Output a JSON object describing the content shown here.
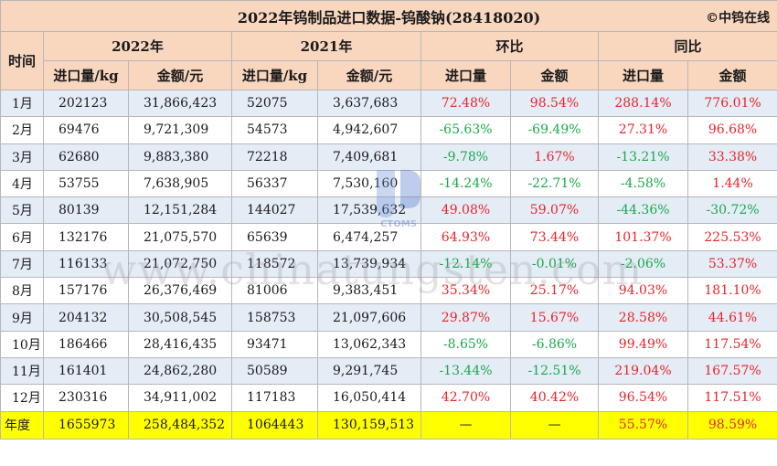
{
  "title": "2022年钨制品进口数据-钨酸钠(28418020)",
  "copyright": "©中钨在线",
  "watermark": "www.chinatungsten.com",
  "logo_text": "CTOMS",
  "headers": {
    "time": "时间",
    "year2022": "2022年",
    "year2021": "2021年",
    "mom": "环比",
    "yoy": "同比",
    "qty": "进口量/kg",
    "amount_yuan": "金额/元",
    "qty_short": "进口量",
    "amount": "金额"
  },
  "rows": [
    {
      "month": "1月",
      "q22": "202123",
      "a22": "31,866,423",
      "q21": "52075",
      "a21": "3,637,683",
      "mq": "72.48%",
      "ma": "98.54%",
      "yq": "288.14%",
      "ya": "776.01%"
    },
    {
      "month": "2月",
      "q22": "69476",
      "a22": "9,721,309",
      "q21": "54573",
      "a21": "4,942,607",
      "mq": "-65.63%",
      "ma": "-69.49%",
      "yq": "27.31%",
      "ya": "96.68%"
    },
    {
      "month": "3月",
      "q22": "62680",
      "a22": "9,883,380",
      "q21": "72218",
      "a21": "7,409,681",
      "mq": "-9.78%",
      "ma": "1.67%",
      "yq": "-13.21%",
      "ya": "33.38%"
    },
    {
      "month": "4月",
      "q22": "53755",
      "a22": "7,638,905",
      "q21": "56337",
      "a21": "7,530,160",
      "mq": "-14.24%",
      "ma": "-22.71%",
      "yq": "-4.58%",
      "ya": "1.44%"
    },
    {
      "month": "5月",
      "q22": "80139",
      "a22": "12,151,284",
      "q21": "144027",
      "a21": "17,539,632",
      "mq": "49.08%",
      "ma": "59.07%",
      "yq": "-44.36%",
      "ya": "-30.72%"
    },
    {
      "month": "6月",
      "q22": "132176",
      "a22": "21,075,570",
      "q21": "65639",
      "a21": "6,474,257",
      "mq": "64.93%",
      "ma": "73.44%",
      "yq": "101.37%",
      "ya": "225.53%"
    },
    {
      "month": "7月",
      "q22": "116133",
      "a22": "21,072,750",
      "q21": "118572",
      "a21": "13,739,934",
      "mq": "-12.14%",
      "ma": "-0.01%",
      "yq": "-2.06%",
      "ya": "53.37%"
    },
    {
      "month": "8月",
      "q22": "157176",
      "a22": "26,376,469",
      "q21": "81006",
      "a21": "9,383,451",
      "mq": "35.34%",
      "ma": "25.17%",
      "yq": "94.03%",
      "ya": "181.10%"
    },
    {
      "month": "9月",
      "q22": "204132",
      "a22": "30,508,545",
      "q21": "158753",
      "a21": "21,097,606",
      "mq": "29.87%",
      "ma": "15.67%",
      "yq": "28.58%",
      "ya": "44.61%"
    },
    {
      "month": "10月",
      "q22": "186466",
      "a22": "28,416,435",
      "q21": "93471",
      "a21": "13,062,343",
      "mq": "-8.65%",
      "ma": "-6.86%",
      "yq": "99.49%",
      "ya": "117.54%"
    },
    {
      "month": "11月",
      "q22": "161401",
      "a22": "24,862,280",
      "q21": "50589",
      "a21": "9,291,745",
      "mq": "-13.44%",
      "ma": "-12.51%",
      "yq": "219.04%",
      "ya": "167.57%"
    },
    {
      "month": "12月",
      "q22": "230316",
      "a22": "34,911,002",
      "q21": "117183",
      "a21": "16,050,414",
      "mq": "42.70%",
      "ma": "40.42%",
      "yq": "96.54%",
      "ya": "117.51%"
    }
  ],
  "total": {
    "label": "年度",
    "q22": "1655973",
    "a22": "258,484,352",
    "q21": "1064443",
    "a21": "130,159,513",
    "mq": "—",
    "ma": "—",
    "yq": "55.57%",
    "ya": "98.59%"
  },
  "colors": {
    "header_bg": "#f9d7bf",
    "stripe_bg": "#e4ecf6",
    "total_bg": "#ffff00",
    "positive": "#e8252a",
    "negative": "#1aa84a"
  }
}
